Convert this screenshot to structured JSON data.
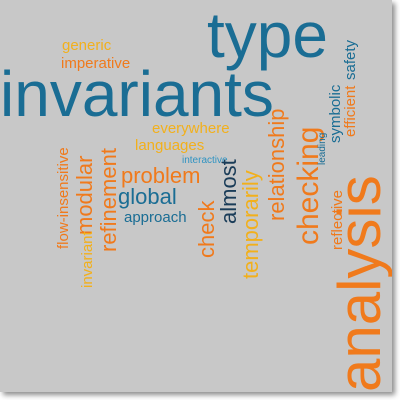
{
  "colors": {
    "background": "#c8c8c8",
    "blue": "#1a6d94",
    "navy": "#1a3c58",
    "orange": "#f07a1c",
    "yellow": "#f2b01c",
    "light_blue": "#2f93c2"
  },
  "words": {
    "type": "type",
    "invariants": "invariants",
    "analysis": "analysis",
    "checking": "checking",
    "relationship": "relationship",
    "temporarily": "temporarily",
    "almost": "almost",
    "check": "check",
    "problem": "problem",
    "global": "global",
    "approach": "approach",
    "refinement": "refinement",
    "modular": "modular",
    "flow_insensitive": "flow-insensitive",
    "invariant": "invariant",
    "generic": "generic",
    "imperative": "imperative",
    "everywhere": "everywhere",
    "languages": "languages",
    "interactive": "interactive",
    "reflective": "reflective",
    "symbolic": "symbolic",
    "leading": "leading",
    "safety": "safety",
    "efficient": "efficient"
  }
}
